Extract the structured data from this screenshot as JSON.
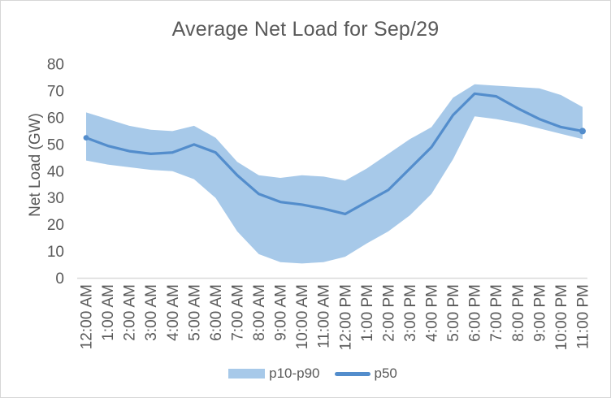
{
  "chart_data": {
    "type": "area",
    "subtype": "band-with-median-line",
    "title": "Average Net Load for Sep/29",
    "xlabel": "",
    "ylabel": "Net Load (GW)",
    "ylim": [
      0,
      80
    ],
    "yticks": [
      0,
      10,
      20,
      30,
      40,
      50,
      60,
      70,
      80
    ],
    "grid": false,
    "legend_position": "bottom",
    "categories": [
      "12:00 AM",
      "1:00 AM",
      "2:00 AM",
      "3:00 AM",
      "4:00 AM",
      "5:00 AM",
      "6:00 AM",
      "7:00 AM",
      "8:00 AM",
      "9:00 AM",
      "10:00 AM",
      "11:00 AM",
      "12:00 PM",
      "1:00 PM",
      "2:00 PM",
      "3:00 PM",
      "4:00 PM",
      "5:00 PM",
      "6:00 PM",
      "7:00 PM",
      "8:00 PM",
      "9:00 PM",
      "10:00 PM",
      "11:00 PM"
    ],
    "series": [
      {
        "name": "p10-p90",
        "kind": "band",
        "upper": [
          62,
          59.5,
          57,
          55.5,
          55,
          57,
          52.5,
          43.5,
          38.5,
          37.5,
          38.5,
          38,
          36.5,
          41,
          46.5,
          52,
          56.5,
          67.5,
          72.5,
          72,
          71.5,
          71,
          68.5,
          64
        ],
        "lower": [
          44,
          42.5,
          41.5,
          40.5,
          40,
          37,
          30,
          17.5,
          9,
          6,
          5.5,
          6,
          8,
          13,
          17.5,
          23.5,
          31.5,
          44.5,
          60.5,
          59.5,
          58,
          56,
          54,
          52
        ]
      },
      {
        "name": "p50",
        "kind": "line",
        "values": [
          52.5,
          49.5,
          47.5,
          46.5,
          47,
          50,
          47,
          38.5,
          31.5,
          28.5,
          27.5,
          26,
          24,
          28.5,
          33,
          41,
          49,
          61,
          69,
          68,
          63.5,
          59.5,
          56.5,
          55
        ]
      }
    ],
    "colors": {
      "band": "#a7c9e9",
      "line": "#538dcc",
      "text": "#595959",
      "axis": "#d9d9d9"
    }
  }
}
